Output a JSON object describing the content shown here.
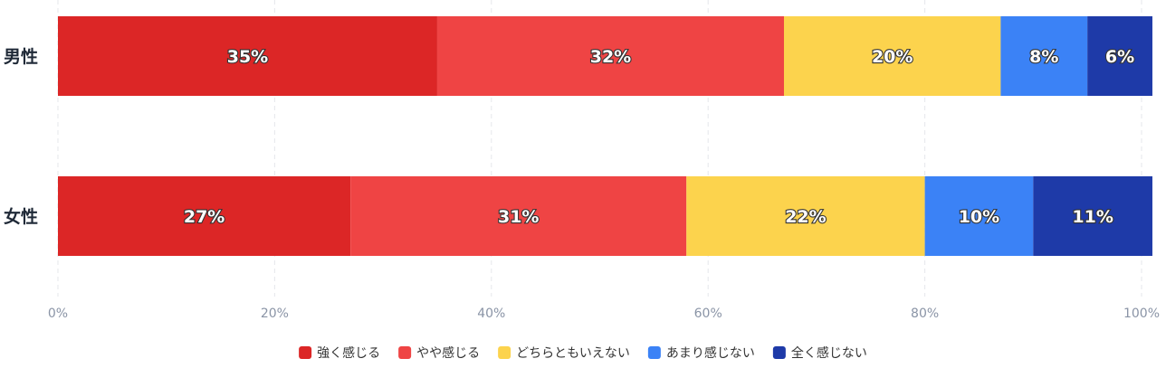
{
  "chart_data": {
    "type": "bar",
    "orientation": "horizontal",
    "stacked": true,
    "categories": [
      "男性",
      "女性"
    ],
    "series": [
      {
        "name": "強く感じる",
        "color": "#dc2626",
        "values": [
          35,
          27
        ]
      },
      {
        "name": "やや感じる",
        "color": "#ef4444",
        "values": [
          32,
          31
        ]
      },
      {
        "name": "どちらともいえない",
        "color": "#fcd34d",
        "values": [
          20,
          22
        ]
      },
      {
        "name": "あまり感じない",
        "color": "#3b82f6",
        "values": [
          8,
          10
        ]
      },
      {
        "name": "全く感じない",
        "color": "#1e3aa8",
        "values": [
          6,
          11
        ]
      }
    ],
    "x_ticks": [
      "0%",
      "20%",
      "40%",
      "60%",
      "80%",
      "100%"
    ],
    "xlim": [
      0,
      100
    ],
    "value_suffix": "%",
    "grid": "vertical dashed",
    "legend_position": "bottom"
  }
}
